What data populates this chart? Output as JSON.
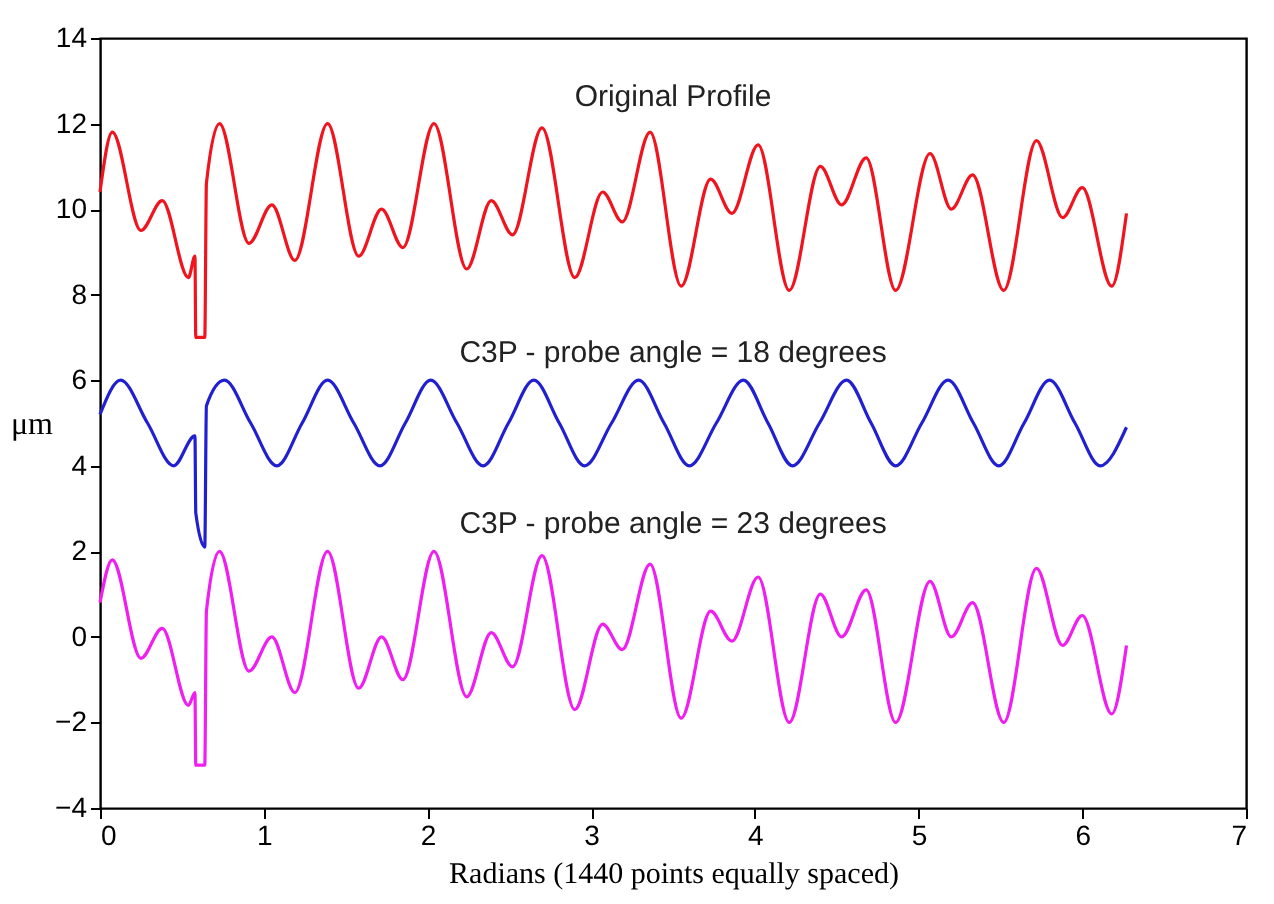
{
  "chart_data": {
    "type": "line",
    "xlabel": "Radians (1440 points equally spaced)",
    "ylabel": "μm",
    "xlim": [
      0,
      7
    ],
    "ylim": [
      -4,
      14
    ],
    "xticks": [
      0,
      1,
      2,
      3,
      4,
      5,
      6,
      7
    ],
    "yticks": [
      -4,
      -2,
      0,
      2,
      4,
      6,
      8,
      10,
      12,
      14
    ],
    "grid": false,
    "line_style": "solid",
    "series": [
      {
        "name": "Original Profile",
        "color": "#f0141e",
        "x": [
          0,
          0.075,
          0.25,
          0.38,
          0.54,
          0.58,
          0.585,
          0.64,
          0.65,
          0.73,
          0.91,
          1.05,
          1.19,
          1.39,
          1.58,
          1.72,
          1.85,
          2.04,
          2.24,
          2.39,
          2.52,
          2.7,
          2.9,
          3.07,
          3.19,
          3.36,
          3.55,
          3.73,
          3.86,
          4.02,
          4.21,
          4.4,
          4.53,
          4.68,
          4.86,
          5.07,
          5.2,
          5.33,
          5.52,
          5.72,
          5.88,
          6.0,
          6.18,
          6.27
        ],
        "values": [
          10.4,
          11.8,
          9.5,
          10.2,
          8.4,
          8.9,
          7.0,
          7.0,
          10.6,
          12.0,
          9.2,
          10.1,
          8.8,
          12.0,
          8.9,
          10.0,
          9.1,
          12.0,
          8.6,
          10.2,
          9.4,
          11.9,
          8.4,
          10.4,
          9.7,
          11.8,
          8.2,
          10.7,
          9.9,
          11.5,
          8.1,
          11.0,
          10.1,
          11.2,
          8.1,
          11.3,
          10.0,
          10.8,
          8.1,
          11.6,
          9.8,
          10.5,
          8.2,
          9.9
        ]
      },
      {
        "name": "C3P - probe angle = 18 degrees",
        "color": "#2020d0",
        "x": [
          0,
          0.126,
          0.29,
          0.45,
          0.58,
          0.585,
          0.64,
          0.65,
          0.76,
          0.92,
          1.08,
          1.235,
          1.39,
          1.55,
          1.71,
          1.865,
          2.02,
          2.18,
          2.34,
          2.495,
          2.65,
          2.805,
          2.96,
          3.125,
          3.29,
          3.445,
          3.6,
          3.765,
          3.93,
          4.08,
          4.23,
          4.395,
          4.56,
          4.71,
          4.86,
          5.02,
          5.18,
          5.335,
          5.49,
          5.645,
          5.8,
          5.955,
          6.11,
          6.27
        ],
        "values": [
          5.2,
          6.0,
          5.0,
          4.0,
          4.7,
          2.9,
          2.1,
          5.4,
          6.0,
          5.0,
          4.0,
          5.0,
          6.0,
          5.0,
          4.0,
          5.0,
          6.0,
          5.0,
          4.0,
          5.0,
          6.0,
          5.0,
          4.0,
          5.0,
          6.0,
          5.0,
          4.0,
          5.0,
          6.0,
          5.0,
          4.0,
          5.0,
          6.0,
          5.0,
          4.0,
          5.0,
          6.0,
          5.0,
          4.0,
          5.0,
          6.0,
          5.0,
          4.0,
          4.9
        ]
      },
      {
        "name": "C3P - probe angle = 23 degrees",
        "color": "#f01ef0",
        "x": [
          0,
          0.075,
          0.25,
          0.38,
          0.54,
          0.58,
          0.585,
          0.64,
          0.65,
          0.73,
          0.91,
          1.05,
          1.19,
          1.39,
          1.58,
          1.72,
          1.85,
          2.04,
          2.24,
          2.39,
          2.52,
          2.7,
          2.9,
          3.07,
          3.19,
          3.36,
          3.55,
          3.73,
          3.86,
          4.02,
          4.21,
          4.4,
          4.53,
          4.68,
          4.86,
          5.07,
          5.2,
          5.33,
          5.52,
          5.72,
          5.88,
          6.0,
          6.18,
          6.27
        ],
        "values": [
          0.8,
          1.8,
          -0.5,
          0.2,
          -1.6,
          -1.3,
          -3.0,
          -3.0,
          0.6,
          2.0,
          -0.8,
          0.0,
          -1.3,
          2.0,
          -1.2,
          0.0,
          -1.0,
          2.0,
          -1.4,
          0.1,
          -0.7,
          1.9,
          -1.7,
          0.3,
          -0.3,
          1.7,
          -1.9,
          0.6,
          -0.1,
          1.4,
          -2.0,
          1.0,
          0.0,
          1.1,
          -2.0,
          1.3,
          0.0,
          0.8,
          -2.0,
          1.6,
          -0.2,
          0.5,
          -1.8,
          -0.2
        ]
      }
    ]
  }
}
